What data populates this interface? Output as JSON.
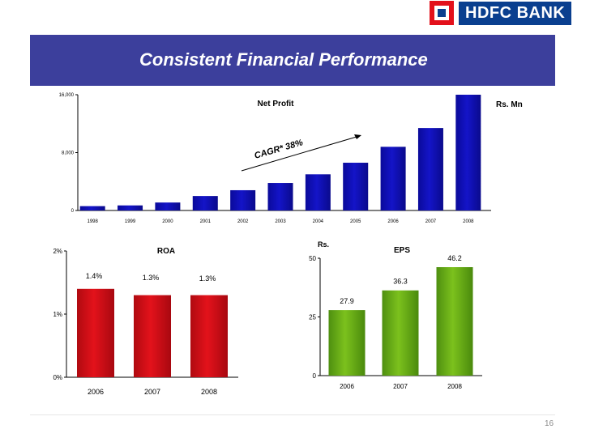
{
  "header": {
    "logo_text": "HDFC BANK",
    "title": "Consistent Financial Performance"
  },
  "footer": {
    "page_number": "16"
  },
  "colors": {
    "banner": "#3c3f9c",
    "net_profit_bars": "#1414c8",
    "roa_bars": "#e3121b",
    "eps_bars": "#7cc11d",
    "logo_red": "#e3101b",
    "logo_blue": "#0a3f8f"
  },
  "chart_data": [
    {
      "type": "bar",
      "title": "Net Profit",
      "unit_label": "Rs. Mn",
      "annotation": "CAGR* 38%",
      "categories": [
        "1998",
        "1999",
        "2000",
        "2001",
        "2002",
        "2003",
        "2004",
        "2005",
        "2006",
        "2007",
        "2008"
      ],
      "values": [
        600,
        700,
        1100,
        2000,
        2800,
        3800,
        5000,
        6600,
        8800,
        11400,
        16000
      ],
      "yticks": [
        "0",
        "8,000",
        "16,000"
      ],
      "ylim": [
        0,
        16000
      ],
      "grid": false
    },
    {
      "type": "bar",
      "title": "ROA",
      "categories": [
        "2006",
        "2007",
        "2008"
      ],
      "values": [
        1.4,
        1.3,
        1.3
      ],
      "labels": [
        "1.4%",
        "1.3%",
        "1.3%"
      ],
      "yticks": [
        "0%",
        "1%",
        "2%"
      ],
      "ylim": [
        0,
        2
      ],
      "grid": false
    },
    {
      "type": "bar",
      "title": "EPS",
      "unit_label": "Rs.",
      "categories": [
        "2006",
        "2007",
        "2008"
      ],
      "values": [
        27.9,
        36.3,
        46.2
      ],
      "labels": [
        "27.9",
        "36.3",
        "46.2"
      ],
      "yticks": [
        "0",
        "25",
        "50"
      ],
      "ylim": [
        0,
        50
      ],
      "grid": false
    }
  ]
}
